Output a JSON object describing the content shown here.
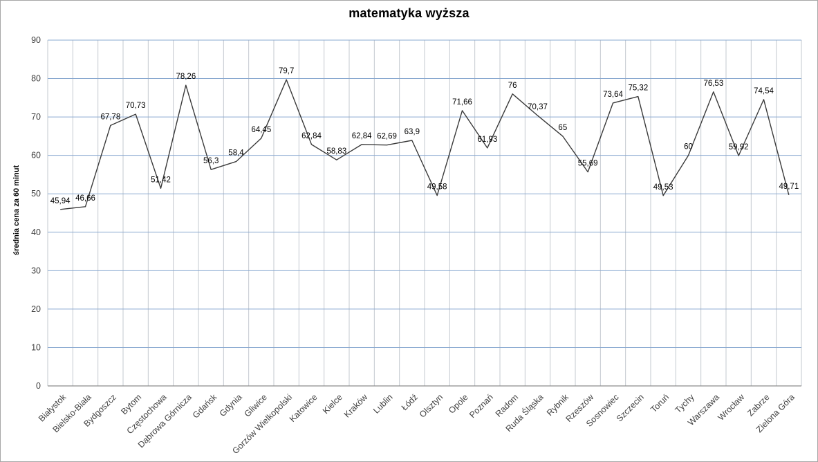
{
  "chart_data": {
    "type": "line",
    "title": "matematyka wyższa",
    "ylabel": "średnia cena za 60 minut",
    "xlabel": "",
    "categories": [
      "Białystok",
      "Bielsko-Biała",
      "Bydgoszcz",
      "Bytom",
      "Częstochowa",
      "Dąbrowa Górnicza",
      "Gdańsk",
      "Gdynia",
      "Gliwice",
      "Gorzów Wielkopolski",
      "Katowice",
      "Kielce",
      "Kraków",
      "Lublin",
      "Łódź",
      "Olsztyn",
      "Opole",
      "Poznań",
      "Radom",
      "Ruda Śląska",
      "Rybnik",
      "Rzeszów",
      "Sosnowiec",
      "Szczecin",
      "Toruń",
      "Tychy",
      "Warszawa",
      "Wrocław",
      "Zabrze",
      "Zielona Góra"
    ],
    "values": [
      45.94,
      46.66,
      67.78,
      70.73,
      51.42,
      78.26,
      56.3,
      58.4,
      64.45,
      79.7,
      62.84,
      58.83,
      62.84,
      62.69,
      63.9,
      49.58,
      71.66,
      61.93,
      76,
      70.37,
      65,
      55.69,
      73.64,
      75.32,
      49.53,
      60,
      76.53,
      59.92,
      74.54,
      49.71
    ],
    "value_labels": [
      "45,94",
      "46,66",
      "67,78",
      "70,73",
      "51,42",
      "78,26",
      "56,3",
      "58,4",
      "64,45",
      "79,7",
      "62,84",
      "58,83",
      "62,84",
      "62,69",
      "63,9",
      "49,58",
      "71,66",
      "61,93",
      "76",
      "70,37",
      "65",
      "55,69",
      "73,64",
      "75,32",
      "49,53",
      "60",
      "76,53",
      "59,92",
      "74,54",
      "49,71"
    ],
    "ylim": [
      0,
      90
    ],
    "ytick_step": 10,
    "grid": "both",
    "legend": "none",
    "markers": "none",
    "colors": {
      "series_line": "#3a3a3a",
      "h_gridline": "#8aa9d0",
      "v_gridline": "#c3c8cf",
      "axis_line": "#8c8c8c",
      "tick_text": "#404040",
      "label_text": "#000000",
      "border": "#a6a6a6",
      "background": "#ffffff"
    }
  }
}
